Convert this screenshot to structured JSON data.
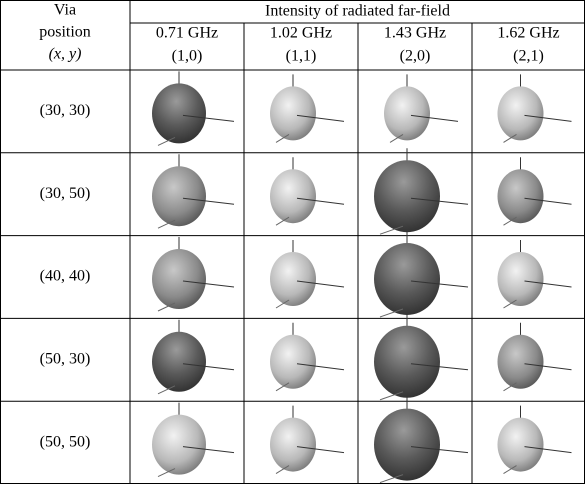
{
  "table": {
    "header": {
      "via": [
        "Via",
        "position",
        "(x, y)"
      ],
      "group": "Intensity of radiated far-field",
      "frequencies": [
        "0.71 GHz",
        "1.02 GHz",
        "1.43 GHz",
        "1.62 GHz"
      ],
      "modes": [
        "(1,0)",
        "(1,1)",
        "(2,0)",
        "(2,1)"
      ]
    },
    "rows": [
      "(30, 30)",
      "(30, 50)",
      "(40, 40)",
      "(50, 30)",
      "(50, 50)"
    ]
  }
}
